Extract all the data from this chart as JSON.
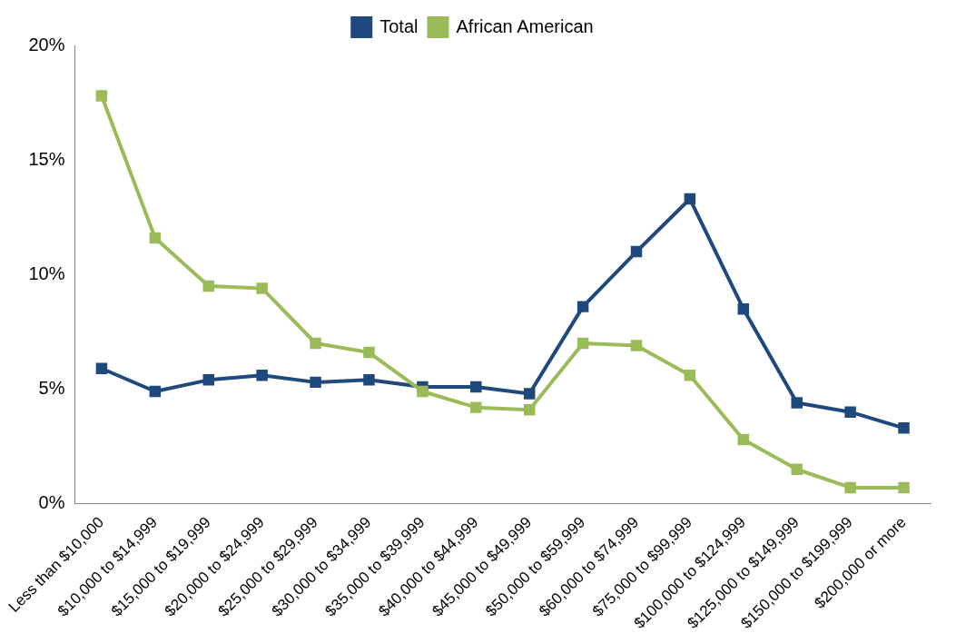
{
  "chart_data": {
    "type": "line",
    "categories": [
      "Less than $10,000",
      "$10,000 to $14,999",
      "$15,000 to $19,999",
      "$20,000 to $24,999",
      "$25,000 to $29,999",
      "$30,000 to $34,999",
      "$35,000 to $39,999",
      "$40,000 to $44,999",
      "$45,000 to $49,999",
      "$50,000 to $59,999",
      "$60,000 to $74,999",
      "$75,000 to $99,999",
      "$100,000 to $124,999",
      "$125,000 to $149,999",
      "$150,000 to $199,999",
      "$200,000 or more"
    ],
    "series": [
      {
        "name": "Total",
        "color": "#1f497d",
        "values": [
          5.9,
          4.9,
          5.4,
          5.6,
          5.3,
          5.4,
          5.1,
          5.1,
          4.8,
          8.6,
          11.0,
          13.3,
          8.5,
          4.4,
          4.0,
          3.3
        ]
      },
      {
        "name": "African American",
        "color": "#9bbb59",
        "values": [
          17.8,
          11.6,
          9.5,
          9.4,
          7.0,
          6.6,
          4.9,
          4.2,
          4.1,
          7.0,
          6.9,
          5.6,
          2.8,
          1.5,
          0.7,
          0.7
        ]
      }
    ],
    "ylim": [
      0,
      20
    ],
    "yticks": [
      {
        "value": 0,
        "label": "0%"
      },
      {
        "value": 5,
        "label": "5%"
      },
      {
        "value": 10,
        "label": "10%"
      },
      {
        "value": 15,
        "label": "15%"
      },
      {
        "value": 20,
        "label": "20%"
      }
    ],
    "grid": false,
    "legend": "top",
    "marker": "square",
    "line_style": "solid"
  }
}
